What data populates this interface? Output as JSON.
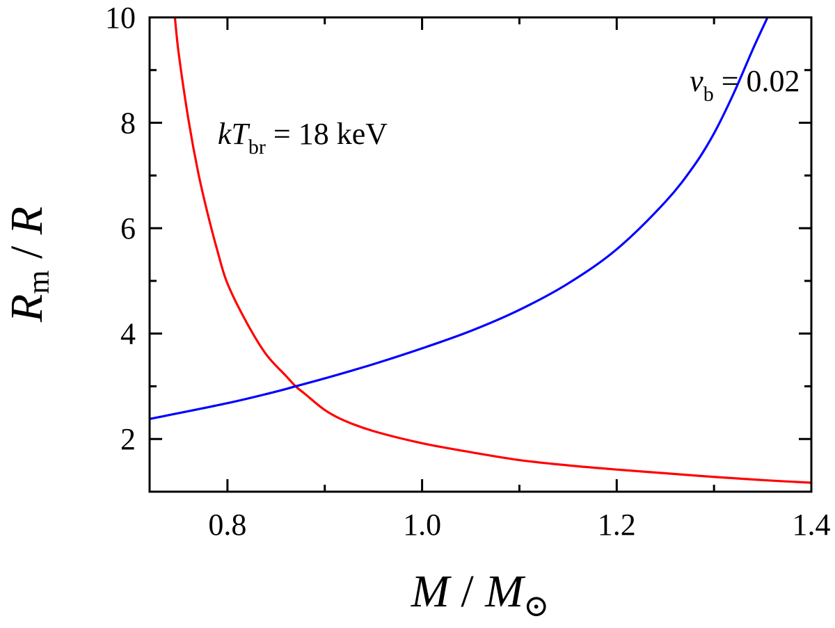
{
  "chart_data": {
    "type": "line",
    "xlabel": {
      "main": "M",
      "sep": " / ",
      "main2": "M",
      "sub": "⊙"
    },
    "ylabel": {
      "main": "R",
      "sub": "m",
      "sep": " / ",
      "main2": "R"
    },
    "xlim": [
      0.72,
      1.4
    ],
    "ylim": [
      1.0,
      10.0
    ],
    "x_ticks": [
      0.8,
      1.0,
      1.2,
      1.4
    ],
    "x_tick_labels": [
      "0.8",
      "1.0",
      "1.2",
      "1.4"
    ],
    "y_ticks": [
      2,
      4,
      6,
      8,
      10
    ],
    "y_tick_labels": [
      "2",
      "4",
      "6",
      "8",
      "10"
    ],
    "grid": false,
    "series": [
      {
        "color": "#ff0000",
        "x": [
          0.746,
          0.75,
          0.76,
          0.77,
          0.78,
          0.79,
          0.8,
          0.82,
          0.84,
          0.86,
          0.87,
          0.88,
          0.9,
          0.92,
          0.95,
          1.0,
          1.05,
          1.1,
          1.15,
          1.2,
          1.25,
          1.3,
          1.35,
          1.4
        ],
        "y": [
          10.0,
          9.3,
          8.05,
          7.05,
          6.25,
          5.55,
          4.95,
          4.2,
          3.6,
          3.2,
          3.0,
          2.85,
          2.55,
          2.35,
          2.15,
          1.92,
          1.75,
          1.6,
          1.5,
          1.42,
          1.35,
          1.28,
          1.22,
          1.17
        ]
      },
      {
        "color": "#0000ff",
        "x": [
          0.72,
          0.8,
          0.85,
          0.87,
          0.9,
          0.95,
          1.0,
          1.05,
          1.1,
          1.15,
          1.2,
          1.25,
          1.28,
          1.3,
          1.32,
          1.34,
          1.355
        ],
        "y": [
          2.38,
          2.68,
          2.9,
          3.0,
          3.15,
          3.42,
          3.72,
          4.05,
          4.45,
          4.95,
          5.6,
          6.5,
          7.2,
          7.8,
          8.55,
          9.4,
          10.0
        ]
      }
    ],
    "annotations": [
      {
        "prefix": "kT",
        "sub": "br",
        "text": " = 18 keV",
        "x": 0.79,
        "y": 7.6
      },
      {
        "prefix": "ν",
        "sub": "b",
        "text": " = 0.02",
        "x": 1.275,
        "y": 8.6
      }
    ]
  }
}
